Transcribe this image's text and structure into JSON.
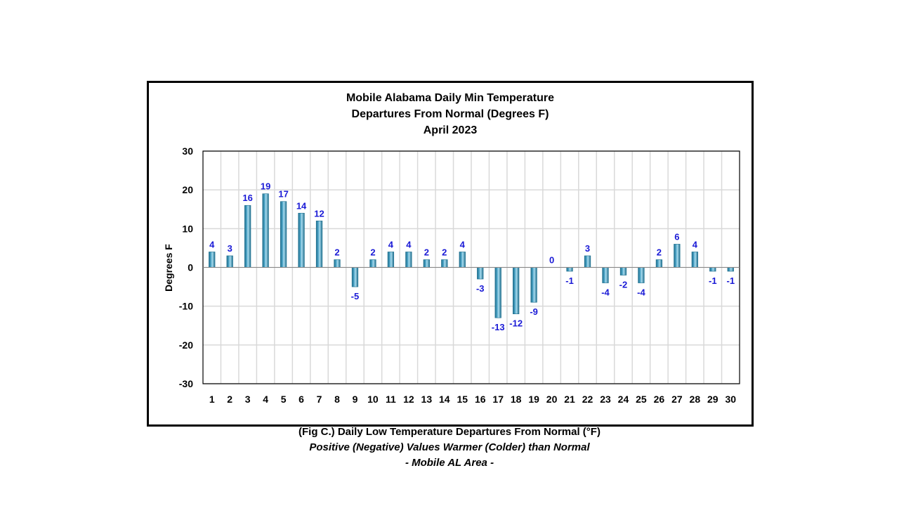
{
  "chart_data": {
    "type": "bar",
    "title": [
      "Mobile Alabama Daily Min Temperature",
      "Departures From Normal (Degrees F)",
      "April 2023"
    ],
    "xlabel": "",
    "ylabel": "Degrees F",
    "ylim": [
      -30,
      30
    ],
    "yticks": [
      30,
      20,
      10,
      0,
      -10,
      -20,
      -30
    ],
    "categories": [
      "1",
      "2",
      "3",
      "4",
      "5",
      "6",
      "7",
      "8",
      "9",
      "10",
      "11",
      "12",
      "13",
      "14",
      "15",
      "16",
      "17",
      "18",
      "19",
      "20",
      "21",
      "22",
      "23",
      "24",
      "25",
      "26",
      "27",
      "28",
      "29",
      "30"
    ],
    "values": [
      4,
      3,
      16,
      19,
      17,
      14,
      12,
      2,
      -5,
      2,
      4,
      4,
      2,
      2,
      4,
      -3,
      -13,
      -12,
      -9,
      0,
      -1,
      3,
      -4,
      -2,
      -4,
      2,
      6,
      4,
      -1,
      -1
    ],
    "grid": true,
    "colors": {
      "bar_dark": "#1f6f8e",
      "bar_mid": "#4fa6c8",
      "bar_light": "#a9dcef",
      "data_label": "#1a1ad6",
      "grid": "#d9d9d9"
    }
  },
  "caption": {
    "line1": "(Fig C.) Daily Low Temperature Departures From Normal (°F)",
    "line2": "Positive (Negative) Values Warmer (Colder) than Normal",
    "line3": "- Mobile AL Area -"
  }
}
